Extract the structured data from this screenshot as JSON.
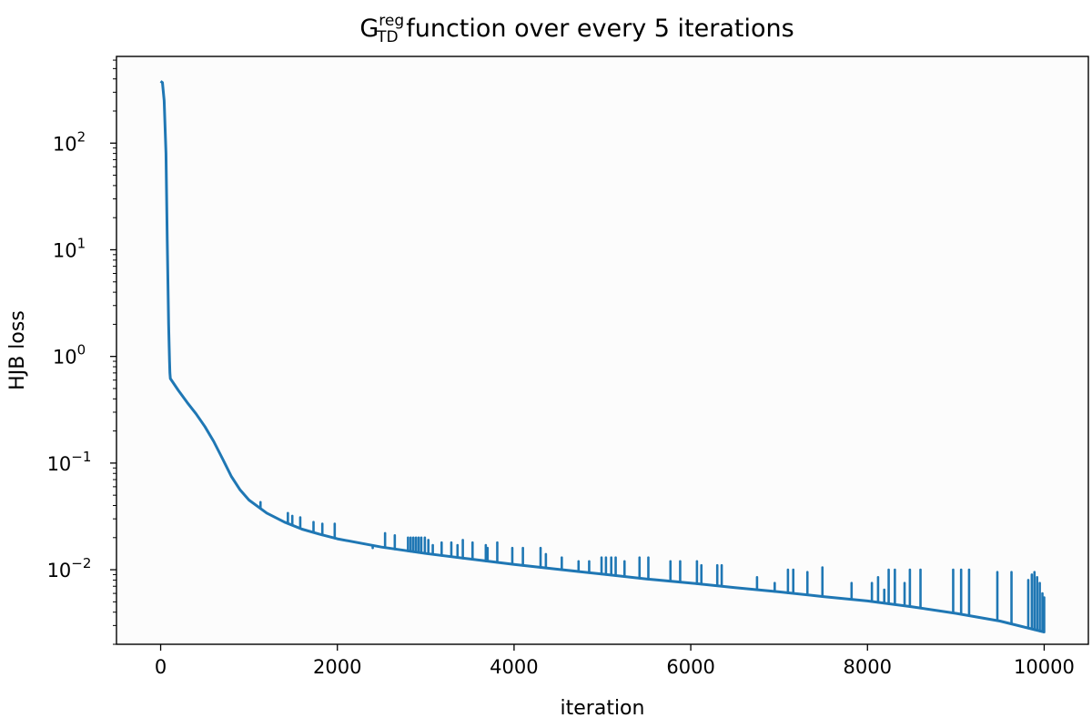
{
  "chart_data": {
    "type": "line",
    "title_main": "G",
    "title_sup": "reg",
    "title_sub": "TD",
    "title_rest": " function over every 5 iterations",
    "xlabel": "iteration",
    "ylabel": "HJB loss",
    "xlim": [
      -500,
      10500
    ],
    "yscale": "log",
    "ylim": [
      0.002,
      650
    ],
    "grid": false,
    "line_color": "#1f77b4",
    "x_ticks": [
      {
        "value": 0,
        "label": "0"
      },
      {
        "value": 2000,
        "label": "2000"
      },
      {
        "value": 4000,
        "label": "4000"
      },
      {
        "value": 6000,
        "label": "6000"
      },
      {
        "value": 8000,
        "label": "8000"
      },
      {
        "value": 10000,
        "label": "10000"
      }
    ],
    "y_ticks": [
      {
        "value": 0.01,
        "base": "10",
        "exp": "−2"
      },
      {
        "value": 0.1,
        "base": "10",
        "exp": "−1"
      },
      {
        "value": 1,
        "base": "10",
        "exp": "0"
      },
      {
        "value": 10,
        "base": "10",
        "exp": "1"
      },
      {
        "value": 100,
        "base": "10",
        "exp": "2"
      }
    ],
    "series": [
      {
        "x": [
          0,
          20,
          40,
          60,
          75,
          90,
          100,
          105,
          110,
          200,
          300,
          400,
          500,
          600,
          700,
          800,
          900,
          1000,
          1200,
          1400,
          1600,
          1800,
          2000,
          2500,
          3000,
          3500,
          4000,
          4500,
          5000,
          5500,
          6000,
          6500,
          7000,
          7500,
          8000,
          8500,
          9000,
          9500,
          10000
        ],
        "values": [
          380,
          370,
          250,
          80,
          12,
          2.0,
          0.9,
          0.7,
          0.62,
          0.48,
          0.37,
          0.29,
          0.22,
          0.16,
          0.11,
          0.075,
          0.056,
          0.045,
          0.034,
          0.028,
          0.024,
          0.0215,
          0.0195,
          0.0163,
          0.0142,
          0.0126,
          0.0112,
          0.0101,
          0.0091,
          0.0082,
          0.0075,
          0.0068,
          0.0062,
          0.0056,
          0.0051,
          0.0045,
          0.0039,
          0.0033,
          0.0026
        ]
      }
    ],
    "spikes": [
      {
        "x": 1130,
        "y": 0.043
      },
      {
        "x": 1440,
        "y": 0.034
      },
      {
        "x": 1490,
        "y": 0.032
      },
      {
        "x": 1580,
        "y": 0.031
      },
      {
        "x": 1730,
        "y": 0.028
      },
      {
        "x": 1830,
        "y": 0.027
      },
      {
        "x": 1970,
        "y": 0.027
      },
      {
        "x": 2400,
        "y": 0.016
      },
      {
        "x": 2540,
        "y": 0.022
      },
      {
        "x": 2650,
        "y": 0.021
      },
      {
        "x": 2800,
        "y": 0.02
      },
      {
        "x": 2830,
        "y": 0.02
      },
      {
        "x": 2860,
        "y": 0.02
      },
      {
        "x": 2890,
        "y": 0.02
      },
      {
        "x": 2920,
        "y": 0.02
      },
      {
        "x": 2950,
        "y": 0.02
      },
      {
        "x": 2990,
        "y": 0.02
      },
      {
        "x": 3030,
        "y": 0.019
      },
      {
        "x": 3080,
        "y": 0.017
      },
      {
        "x": 3180,
        "y": 0.018
      },
      {
        "x": 3290,
        "y": 0.018
      },
      {
        "x": 3360,
        "y": 0.017
      },
      {
        "x": 3420,
        "y": 0.019
      },
      {
        "x": 3530,
        "y": 0.018
      },
      {
        "x": 3680,
        "y": 0.017
      },
      {
        "x": 3700,
        "y": 0.016
      },
      {
        "x": 3810,
        "y": 0.018
      },
      {
        "x": 3980,
        "y": 0.016
      },
      {
        "x": 4100,
        "y": 0.016
      },
      {
        "x": 4300,
        "y": 0.016
      },
      {
        "x": 4360,
        "y": 0.014
      },
      {
        "x": 4540,
        "y": 0.013
      },
      {
        "x": 4730,
        "y": 0.012
      },
      {
        "x": 4850,
        "y": 0.012
      },
      {
        "x": 4990,
        "y": 0.013
      },
      {
        "x": 5040,
        "y": 0.013
      },
      {
        "x": 5100,
        "y": 0.013
      },
      {
        "x": 5150,
        "y": 0.013
      },
      {
        "x": 5250,
        "y": 0.012
      },
      {
        "x": 5420,
        "y": 0.013
      },
      {
        "x": 5520,
        "y": 0.013
      },
      {
        "x": 5770,
        "y": 0.012
      },
      {
        "x": 5880,
        "y": 0.012
      },
      {
        "x": 6070,
        "y": 0.012
      },
      {
        "x": 6120,
        "y": 0.011
      },
      {
        "x": 6300,
        "y": 0.011
      },
      {
        "x": 6350,
        "y": 0.011
      },
      {
        "x": 6750,
        "y": 0.0085
      },
      {
        "x": 6950,
        "y": 0.0075
      },
      {
        "x": 7100,
        "y": 0.01
      },
      {
        "x": 7160,
        "y": 0.01
      },
      {
        "x": 7320,
        "y": 0.0095
      },
      {
        "x": 7490,
        "y": 0.0105
      },
      {
        "x": 7820,
        "y": 0.0075
      },
      {
        "x": 8050,
        "y": 0.0075
      },
      {
        "x": 8120,
        "y": 0.0085
      },
      {
        "x": 8190,
        "y": 0.0065
      },
      {
        "x": 8240,
        "y": 0.01
      },
      {
        "x": 8310,
        "y": 0.01
      },
      {
        "x": 8420,
        "y": 0.0075
      },
      {
        "x": 8480,
        "y": 0.01
      },
      {
        "x": 8600,
        "y": 0.01
      },
      {
        "x": 8970,
        "y": 0.01
      },
      {
        "x": 9060,
        "y": 0.01
      },
      {
        "x": 9150,
        "y": 0.01
      },
      {
        "x": 9470,
        "y": 0.0095
      },
      {
        "x": 9630,
        "y": 0.0095
      },
      {
        "x": 9820,
        "y": 0.008
      },
      {
        "x": 9860,
        "y": 0.009
      },
      {
        "x": 9890,
        "y": 0.0095
      },
      {
        "x": 9920,
        "y": 0.0085
      },
      {
        "x": 9950,
        "y": 0.0075
      },
      {
        "x": 9980,
        "y": 0.006
      },
      {
        "x": 10000,
        "y": 0.0055
      }
    ]
  }
}
